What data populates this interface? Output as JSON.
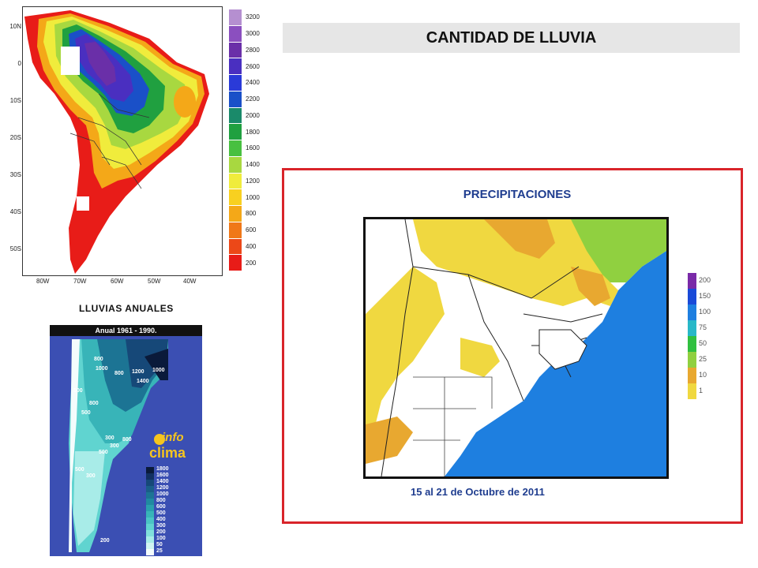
{
  "header": {
    "title": "CANTIDAD DE LLUVIA"
  },
  "sa_map": {
    "lat_labels": [
      "10N",
      "0",
      "10S",
      "20S",
      "30S",
      "40S",
      "50S"
    ],
    "lon_labels": [
      "80W",
      "70W",
      "60W",
      "50W",
      "40W"
    ],
    "legend_values": [
      "3200",
      "3000",
      "2800",
      "2600",
      "2400",
      "2200",
      "2000",
      "1800",
      "1600",
      "1400",
      "1200",
      "1000",
      "800",
      "600",
      "400",
      "200"
    ],
    "legend_colors": [
      "#b58fd0",
      "#8b4fbf",
      "#6a2fa8",
      "#4a2fc0",
      "#2a3ad8",
      "#1a50c8",
      "#1a8a6a",
      "#20a040",
      "#48c040",
      "#a8d840",
      "#f0ec3c",
      "#f8d020",
      "#f4a818",
      "#f07818",
      "#ec4818",
      "#e81c18"
    ],
    "caption": "LLUVIAS ANUALES"
  },
  "arg_map": {
    "header": "Anual 1961 - 1990.",
    "brand_top": "info",
    "brand_bottom": "clima",
    "legend_values": [
      "1800",
      "1600",
      "1400",
      "1200",
      "1000",
      "800",
      "600",
      "500",
      "400",
      "300",
      "200",
      "100",
      "50",
      "25"
    ],
    "legend_colors": [
      "#0a1a3a",
      "#123060",
      "#164878",
      "#1a5e88",
      "#1c7494",
      "#208aa0",
      "#2aa0ac",
      "#38b4b8",
      "#4ac4c4",
      "#60d4d0",
      "#80e0dc",
      "#a8ece8",
      "#d0f4f2",
      "#f4fcfc"
    ],
    "contour_labels": [
      "800",
      "1000",
      "800",
      "1200",
      "1400",
      "1000",
      "500",
      "800",
      "500",
      "300",
      "300",
      "500",
      "800",
      "500",
      "300",
      "200"
    ]
  },
  "precip_map": {
    "title": "PRECIPITACIONES",
    "date": "15 al 21 de Octubre de 2011",
    "legend_values": [
      "200",
      "150",
      "100",
      "75",
      "50",
      "25",
      "10",
      "1"
    ],
    "legend_colors": [
      "#7a2aa8",
      "#1a4ad8",
      "#1e7fe0",
      "#28b8c8",
      "#30c040",
      "#90d040",
      "#e8a830",
      "#f0d840"
    ]
  }
}
